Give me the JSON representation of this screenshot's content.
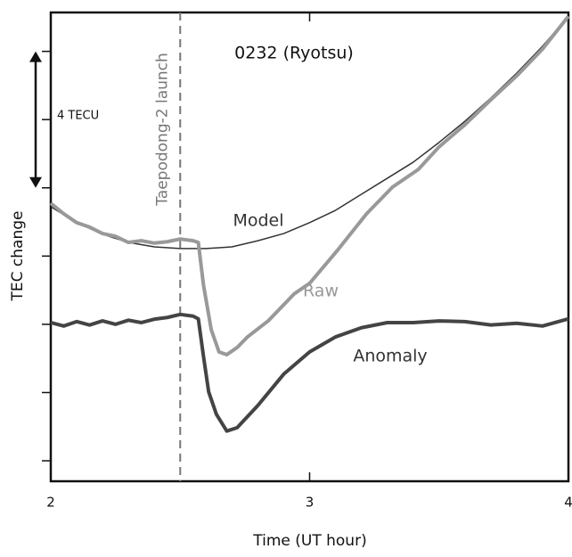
{
  "chart_data": {
    "type": "line",
    "title": "0232 (Ryotsu)",
    "xlabel": "Time (UT hour)",
    "ylabel": "TEC change",
    "xlim": [
      2,
      4
    ],
    "xticks": [
      2,
      3,
      4
    ],
    "ylim": [
      -4.6,
      9.14
    ],
    "yticks": [
      -4,
      -2,
      0,
      2,
      4,
      6,
      8
    ],
    "event": {
      "x": 2.5,
      "label": "Taepodong-2 launch",
      "color": "#777"
    },
    "scale_bar": {
      "label": "4 TECU",
      "from": 4,
      "to": 8
    },
    "series": [
      {
        "name": "Model",
        "color": "#333",
        "width": 1.5,
        "x": [
          2.0,
          2.1,
          2.2,
          2.3,
          2.4,
          2.5,
          2.6,
          2.7,
          2.8,
          2.9,
          3.0,
          3.1,
          3.2,
          3.3,
          3.4,
          3.5,
          3.6,
          3.7,
          3.8,
          3.9,
          4.0
        ],
        "values": [
          3.45,
          2.98,
          2.64,
          2.4,
          2.27,
          2.22,
          2.22,
          2.27,
          2.45,
          2.66,
          2.98,
          3.34,
          3.81,
          4.28,
          4.75,
          5.33,
          5.95,
          6.63,
          7.36,
          8.15,
          9.03
        ]
      },
      {
        "name": "Raw",
        "color": "#999",
        "width": 4,
        "x": [
          2.0,
          2.05,
          2.1,
          2.15,
          2.2,
          2.25,
          2.3,
          2.35,
          2.4,
          2.45,
          2.5,
          2.55,
          2.57,
          2.59,
          2.62,
          2.65,
          2.68,
          2.72,
          2.76,
          2.84,
          2.94,
          3.0,
          3.11,
          3.22,
          3.32,
          3.42,
          3.5,
          3.6,
          3.7,
          3.8,
          3.9,
          4.0
        ],
        "values": [
          3.55,
          3.24,
          2.98,
          2.85,
          2.66,
          2.58,
          2.4,
          2.45,
          2.38,
          2.42,
          2.5,
          2.45,
          2.4,
          1.15,
          -0.16,
          -0.81,
          -0.89,
          -0.68,
          -0.37,
          0.1,
          0.89,
          1.2,
          2.19,
          3.24,
          4.02,
          4.54,
          5.2,
          5.85,
          6.58,
          7.28,
          8.07,
          9.03
        ]
      },
      {
        "name": "Anomaly",
        "color": "#444",
        "width": 4,
        "x": [
          2.0,
          2.05,
          2.1,
          2.15,
          2.2,
          2.25,
          2.3,
          2.35,
          2.4,
          2.45,
          2.5,
          2.55,
          2.57,
          2.59,
          2.61,
          2.64,
          2.68,
          2.72,
          2.8,
          2.9,
          3.0,
          3.1,
          3.2,
          3.3,
          3.4,
          3.5,
          3.6,
          3.7,
          3.8,
          3.9,
          4.0
        ],
        "values": [
          0.05,
          -0.05,
          0.08,
          -0.02,
          0.1,
          0.0,
          0.12,
          0.05,
          0.15,
          0.2,
          0.29,
          0.24,
          0.16,
          -0.94,
          -1.98,
          -2.64,
          -3.13,
          -3.03,
          -2.38,
          -1.46,
          -0.81,
          -0.37,
          -0.1,
          0.05,
          0.05,
          0.1,
          0.08,
          -0.02,
          0.03,
          -0.05,
          0.16
        ]
      }
    ]
  }
}
